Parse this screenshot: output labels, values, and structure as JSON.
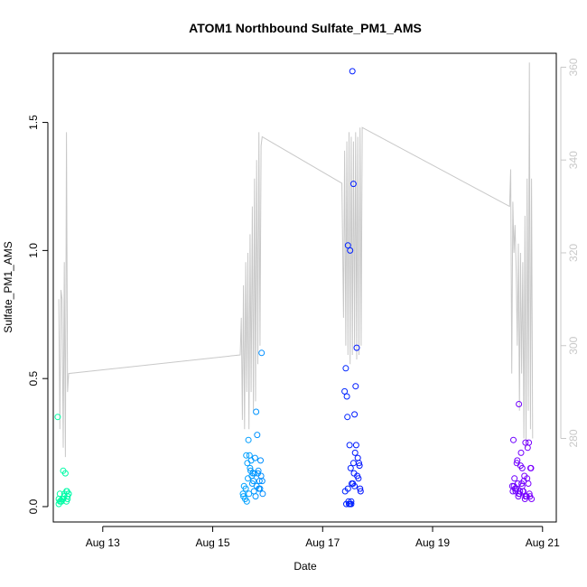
{
  "chart_data": {
    "type": "scatter",
    "title": "ATOM1 Northbound Sulfate_PM1_AMS",
    "xlabel": "Date",
    "ylabel": "Sulfate_PM1_AMS",
    "x_ticks": [
      "Aug 13",
      "Aug 15",
      "Aug 17",
      "Aug 19",
      "Aug 21"
    ],
    "y_ticks": [
      "0.0",
      "0.5",
      "1.0",
      "1.5"
    ],
    "y2_ticks": [
      "280",
      "300",
      "320",
      "340",
      "360"
    ],
    "xlim": [
      12.1,
      21.25
    ],
    "ylim": [
      -0.06,
      1.77
    ],
    "y2lim": [
      262,
      363
    ],
    "grid": false,
    "colors": {
      "line": "#c8c8c8",
      "right_axis": "#c8c8c8",
      "points_gradient": [
        "#00ffa0",
        "#00c8ff",
        "#0000ff",
        "#8000ff"
      ]
    },
    "series": [
      {
        "kind": "points",
        "x": [
          12.18,
          12.2,
          12.22,
          12.24,
          12.26,
          12.28,
          12.3,
          12.32,
          12.34,
          12.36,
          12.38,
          12.2,
          12.25,
          12.3,
          12.35,
          12.38,
          12.28,
          12.34,
          12.36,
          12.22,
          15.55,
          15.57,
          15.59,
          15.61,
          15.63,
          15.65,
          15.67,
          15.69,
          15.71,
          15.73,
          15.75,
          15.77,
          15.79,
          15.81,
          15.83,
          15.85,
          15.87,
          15.89,
          15.91,
          15.56,
          15.6,
          15.64,
          15.68,
          15.72,
          15.76,
          15.8,
          15.84,
          15.88,
          15.62,
          15.66,
          15.7,
          15.74,
          15.78,
          15.82,
          15.86,
          15.9,
          17.4,
          17.42,
          17.44,
          17.46,
          17.48,
          17.5,
          17.52,
          17.54,
          17.56,
          17.58,
          17.6,
          17.62,
          17.64,
          17.66,
          17.68,
          17.41,
          17.45,
          17.49,
          17.53,
          17.57,
          17.61,
          17.65,
          17.69,
          17.43,
          17.47,
          17.51,
          17.55,
          17.59,
          17.63,
          17.67,
          17.52,
          17.58,
          17.46,
          17.5,
          17.56,
          20.45,
          20.47,
          20.49,
          20.51,
          20.53,
          20.55,
          20.57,
          20.59,
          20.61,
          20.63,
          20.65,
          20.67,
          20.69,
          20.71,
          20.73,
          20.75,
          20.77,
          20.79,
          20.46,
          20.5,
          20.54,
          20.58,
          20.62,
          20.66,
          20.7,
          20.74,
          20.78,
          20.48,
          20.52,
          20.56,
          20.6,
          20.64,
          20.68,
          20.72,
          20.76,
          20.8,
          20.57,
          20.63,
          20.69
        ],
        "y": [
          0.35,
          0.01,
          0.05,
          0.02,
          0.03,
          0.14,
          0.05,
          0.13,
          0.02,
          0.04,
          0.05,
          0.03,
          0.02,
          0.04,
          0.06,
          0.05,
          0.03,
          0.06,
          0.03,
          0.02,
          0.05,
          0.08,
          0.03,
          0.2,
          0.17,
          0.26,
          0.2,
          0.14,
          0.12,
          0.13,
          0.06,
          0.19,
          0.37,
          0.28,
          0.14,
          0.1,
          0.18,
          0.6,
          0.05,
          0.04,
          0.07,
          0.11,
          0.15,
          0.09,
          0.13,
          0.08,
          0.07,
          0.12,
          0.02,
          0.05,
          0.18,
          0.1,
          0.04,
          0.13,
          0.07,
          0.1,
          0.45,
          0.54,
          0.43,
          1.02,
          0.01,
          1.0,
          0.01,
          1.7,
          1.26,
          0.36,
          0.47,
          0.62,
          0.19,
          0.17,
          0.07,
          0.06,
          0.35,
          0.24,
          0.09,
          0.13,
          0.24,
          0.11,
          0.06,
          0.01,
          0.02,
          0.15,
          0.09,
          0.21,
          0.12,
          0.16,
          0.02,
          0.08,
          0.07,
          0.01,
          0.17,
          0.08,
          0.26,
          0.11,
          0.06,
          0.17,
          0.09,
          0.4,
          0.06,
          0.21,
          0.15,
          0.06,
          0.12,
          0.25,
          0.04,
          0.23,
          0.25,
          0.04,
          0.15,
          0.06,
          0.07,
          0.18,
          0.05,
          0.09,
          0.1,
          0.04,
          0.09,
          0.15,
          0.08,
          0.07,
          0.04,
          0.16,
          0.06,
          0.03,
          0.11,
          0.05,
          0.03,
          0.05,
          0.08,
          0.04
        ]
      },
      {
        "kind": "line",
        "axis": "right",
        "x": [
          12.2,
          12.22,
          12.24,
          12.26,
          12.28,
          12.3,
          12.32,
          12.34,
          12.36,
          12.38,
          15.5,
          15.52,
          15.54,
          15.56,
          15.58,
          15.6,
          15.62,
          15.64,
          15.66,
          15.68,
          15.7,
          15.72,
          15.74,
          15.76,
          15.78,
          15.8,
          15.82,
          15.84,
          15.86,
          15.88,
          15.9,
          17.35,
          17.38,
          17.4,
          17.42,
          17.44,
          17.46,
          17.48,
          17.5,
          17.52,
          17.54,
          17.56,
          17.58,
          17.6,
          17.62,
          17.64,
          17.66,
          17.68,
          17.7,
          17.72,
          20.4,
          20.42,
          20.44,
          20.46,
          20.48,
          20.5,
          20.52,
          20.54,
          20.56,
          20.58,
          20.6,
          20.62,
          20.64,
          20.66,
          20.68,
          20.7,
          20.72,
          20.74,
          20.76,
          20.78,
          20.8,
          20.82
        ],
        "y": [
          310,
          282,
          312,
          310,
          278,
          318,
          276,
          346,
          290,
          294,
          298,
          306,
          284,
          313,
          282,
          318,
          290,
          320,
          282,
          324,
          290,
          330,
          286,
          336,
          288,
          340,
          296,
          346,
          300,
          343,
          345,
          335,
          306,
          342,
          300,
          344,
          298,
          346,
          296,
          345,
          298,
          344,
          300,
          346,
          297,
          345,
          298,
          347,
          300,
          347,
          330,
          338,
          294,
          331,
          320,
          326,
          316,
          300,
          322,
          286,
          320,
          294,
          318,
          280,
          328,
          278,
          336,
          286,
          361,
          282,
          336,
          280
        ]
      }
    ]
  }
}
